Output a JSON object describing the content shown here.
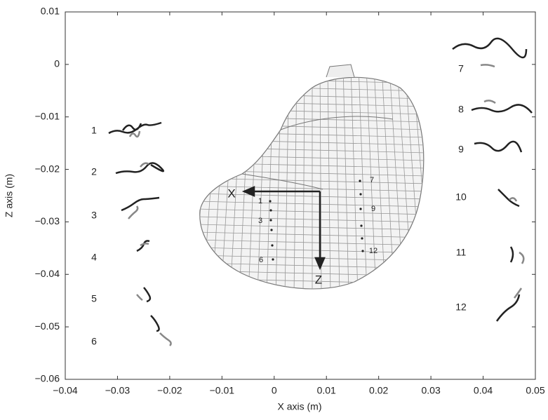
{
  "chart_data": {
    "type": "figure",
    "xlabel": "X axis (m)",
    "ylabel": "Z axis (m)",
    "xlim": [
      -0.04,
      0.05
    ],
    "xticks": [
      {
        "value": -0.04,
        "label": "−0.04"
      },
      {
        "value": -0.03,
        "label": "−0.03"
      },
      {
        "value": -0.02,
        "label": "−0.02"
      },
      {
        "value": -0.01,
        "label": "−0.01"
      },
      0,
      0.01,
      0.02,
      0.03,
      0.04,
      0.05
    ],
    "ylim": [
      -0.06,
      0.01
    ],
    "yticks": [
      0.01,
      0,
      {
        "value": -0.01,
        "label": "−0.01"
      },
      {
        "value": -0.02,
        "label": "−0.02"
      },
      {
        "value": -0.03,
        "label": "−0.03"
      },
      {
        "value": -0.04,
        "label": "−0.04"
      },
      {
        "value": -0.05,
        "label": "−0.05"
      },
      {
        "value": -0.06,
        "label": "−0.06"
      }
    ],
    "annotations": [
      "1",
      "2",
      "3",
      "4",
      "5",
      "6",
      "7",
      "8",
      "9",
      "10",
      "11",
      "12",
      "X",
      "Z",
      "1",
      "3",
      "6",
      "7",
      "9",
      "12"
    ]
  }
}
